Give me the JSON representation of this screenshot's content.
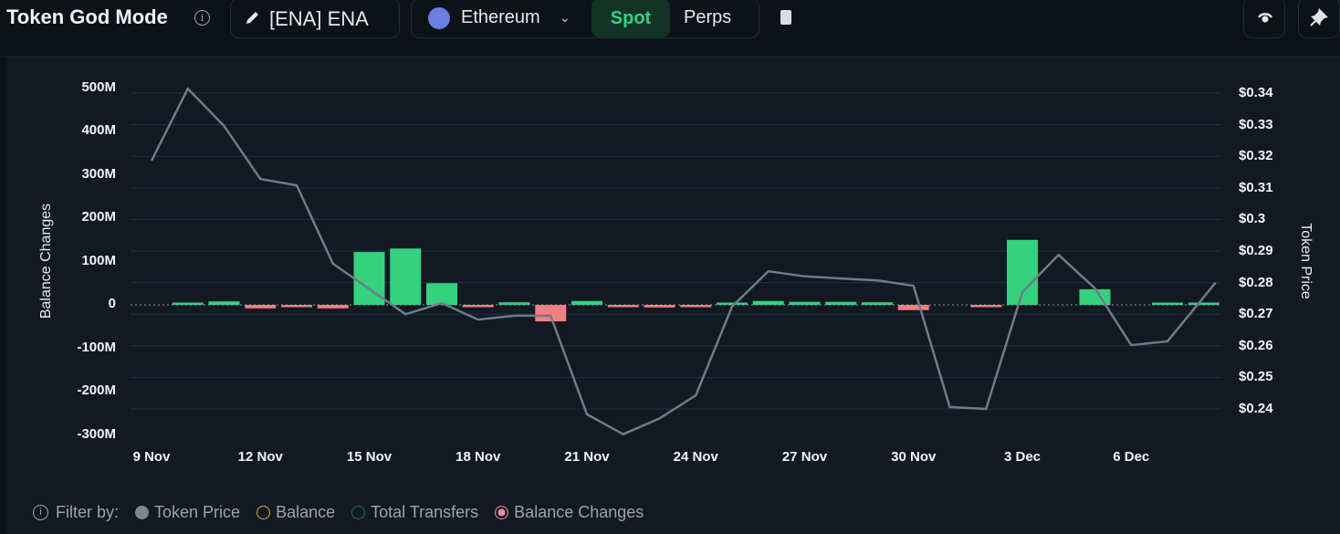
{
  "header": {
    "title": "Token God Mode",
    "token_label": "[ENA] ENA",
    "chain_label": "Ethereum",
    "spot_label": "Spot",
    "perps_label": "Perps"
  },
  "legend": {
    "filter_label": "Filter by:",
    "items": [
      {
        "label": "Token Price",
        "color": "#7d8794",
        "state": "filled"
      },
      {
        "label": "Balance",
        "color": "#d7b33a",
        "state": "outline"
      },
      {
        "label": "Total Transfers",
        "color": "#2b6d6a",
        "state": "outline"
      },
      {
        "label": "Balance Changes",
        "color": "#f08aa6",
        "state": "selected"
      }
    ]
  },
  "chart_data": {
    "type": "bar+line",
    "ylabel": "Balance Changes",
    "y2label": "Token Price",
    "ylim": [
      -300,
      500
    ],
    "y2lim": [
      0.24,
      0.34
    ],
    "yticks": [
      "500M",
      "400M",
      "300M",
      "200M",
      "100M",
      "0",
      "-100M",
      "-200M",
      "-300M"
    ],
    "y2ticks": [
      "$0.34",
      "$0.33",
      "$0.32",
      "$0.31",
      "$0.3",
      "$0.29",
      "$0.28",
      "$0.27",
      "$0.26",
      "$0.25",
      "$0.24"
    ],
    "xticks": [
      "9 Nov",
      "12 Nov",
      "15 Nov",
      "18 Nov",
      "21 Nov",
      "24 Nov",
      "27 Nov",
      "30 Nov",
      "3 Dec",
      "6 Dec"
    ],
    "dates": [
      "9 Nov",
      "10 Nov",
      "11 Nov",
      "12 Nov",
      "13 Nov",
      "14 Nov",
      "15 Nov",
      "16 Nov",
      "17 Nov",
      "18 Nov",
      "19 Nov",
      "20 Nov",
      "21 Nov",
      "22 Nov",
      "23 Nov",
      "24 Nov",
      "25 Nov",
      "26 Nov",
      "27 Nov",
      "28 Nov",
      "29 Nov",
      "30 Nov",
      "1 Dec",
      "2 Dec",
      "3 Dec",
      "4 Dec",
      "5 Dec",
      "6 Dec",
      "7 Dec",
      "8 Dec"
    ],
    "series": [
      {
        "name": "Balance Changes (M)",
        "type": "bar",
        "values": [
          0,
          3,
          8,
          -8,
          -2,
          -8,
          122,
          130,
          50,
          -5,
          6,
          -38,
          9,
          -3,
          -6,
          -2,
          3,
          9,
          7,
          7,
          6,
          -12,
          0,
          -5,
          150,
          0,
          36,
          0,
          5,
          3
        ]
      },
      {
        "name": "Token Price",
        "type": "line",
        "values": [
          0.3186,
          0.3414,
          0.3296,
          0.3128,
          0.3108,
          0.286,
          0.278,
          0.27,
          0.2735,
          0.2683,
          0.2695,
          0.2695,
          0.2383,
          0.232,
          0.237,
          0.2443,
          0.2724,
          0.2836,
          0.282,
          0.2813,
          0.2807,
          0.279,
          0.2406,
          0.24,
          0.277,
          0.2888,
          0.2782,
          0.2602,
          0.2614,
          0.28
        ]
      }
    ],
    "colors": {
      "positive": "#34d17f",
      "negative": "#f08080",
      "line": "#6f7b88",
      "grid": "#1e3347"
    }
  }
}
